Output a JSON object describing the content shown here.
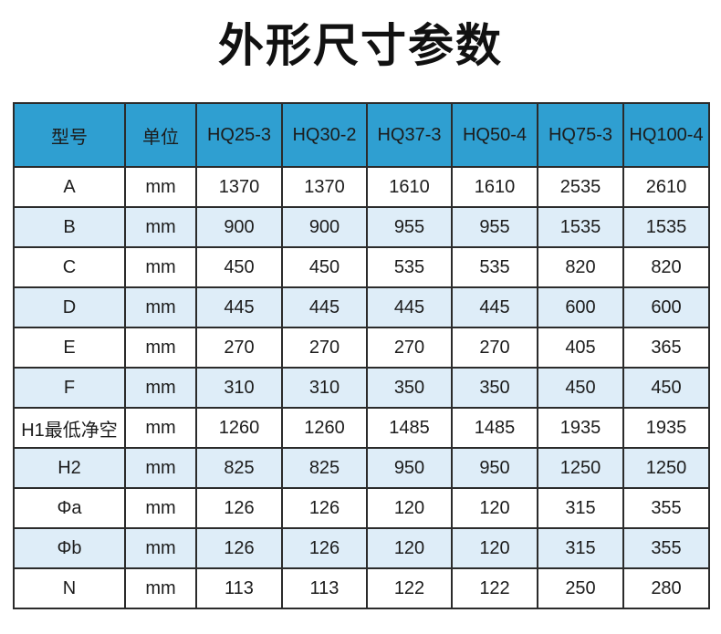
{
  "header": {
    "title": "外形尺寸参数"
  },
  "table": {
    "columns": [
      "型号",
      "单位",
      "HQ25-3",
      "HQ30-2",
      "HQ37-3",
      "HQ50-4",
      "HQ75-3",
      "HQ100-4"
    ],
    "rows": [
      [
        "A",
        "mm",
        "1370",
        "1370",
        "1610",
        "1610",
        "2535",
        "2610"
      ],
      [
        "B",
        "mm",
        "900",
        "900",
        "955",
        "955",
        "1535",
        "1535"
      ],
      [
        "C",
        "mm",
        "450",
        "450",
        "535",
        "535",
        "820",
        "820"
      ],
      [
        "D",
        "mm",
        "445",
        "445",
        "445",
        "445",
        "600",
        "600"
      ],
      [
        "E",
        "mm",
        "270",
        "270",
        "270",
        "270",
        "405",
        "365"
      ],
      [
        "F",
        "mm",
        "310",
        "310",
        "350",
        "350",
        "450",
        "450"
      ],
      [
        "H1最低净空",
        "mm",
        "1260",
        "1260",
        "1485",
        "1485",
        "1935",
        "1935"
      ],
      [
        "H2",
        "mm",
        "825",
        "825",
        "950",
        "950",
        "1250",
        "1250"
      ],
      [
        "Φa",
        "mm",
        "126",
        "126",
        "120",
        "120",
        "315",
        "355"
      ],
      [
        "Φb",
        "mm",
        "126",
        "126",
        "120",
        "120",
        "315",
        "355"
      ],
      [
        "N",
        "mm",
        "113",
        "113",
        "122",
        "122",
        "250",
        "280"
      ]
    ]
  }
}
